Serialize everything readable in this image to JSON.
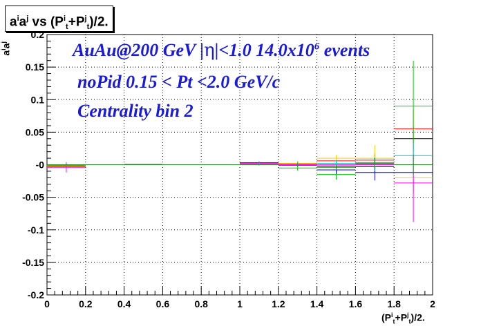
{
  "chart_data": {
    "type": "scatter",
    "title": "aⁱaʲ vs (Pₜⁱ+Pₜʲ)/2.",
    "xlabel": "(Pₜⁱ+Pₜʲ)/2.",
    "ylabel": "aⁱaʲ",
    "xlim": [
      0,
      2
    ],
    "ylim": [
      -0.2,
      0.2
    ],
    "xticks": [
      "0",
      "0.2",
      "0.4",
      "0.6",
      "0.8",
      "1",
      "1.2",
      "1.4",
      "1.6",
      "1.8",
      "2"
    ],
    "yticks": [
      "-0.2",
      "-0.15",
      "-0.1",
      "-0.05",
      "-0",
      "0.05",
      "0.1",
      "0.15",
      "0.2"
    ],
    "grid": true,
    "annotations": [
      "AuAu@200 GeV |η|<1.0 14.0x10⁶ events",
      "noPid 0.15 < Pt <2.0 GeV/c",
      "Centrality bin 2"
    ],
    "series": [
      {
        "color": "#000000",
        "points": [
          {
            "x": 0.1,
            "y": -0.0005,
            "err": 0.001
          },
          {
            "x": 0.3,
            "y": 0.0,
            "err": 0.0005
          },
          {
            "x": 0.5,
            "y": 0.0,
            "err": 0.0005
          },
          {
            "x": 0.7,
            "y": 0.0,
            "err": 0.0005
          },
          {
            "x": 0.9,
            "y": 0.0,
            "err": 0.0005
          },
          {
            "x": 1.1,
            "y": 0.0015,
            "err": 0.002
          },
          {
            "x": 1.3,
            "y": 0.002,
            "err": 0.003
          },
          {
            "x": 1.5,
            "y": -0.002,
            "err": 0.004
          },
          {
            "x": 1.7,
            "y": -0.003,
            "err": 0.008
          },
          {
            "x": 1.9,
            "y": 0.04,
            "err": 0.02
          }
        ]
      },
      {
        "color": "#ff0000",
        "points": [
          {
            "x": 0.1,
            "y": -0.003,
            "err": 0.002
          },
          {
            "x": 0.3,
            "y": 0.0,
            "err": 0.0005
          },
          {
            "x": 0.5,
            "y": 0.0005,
            "err": 0.0005
          },
          {
            "x": 0.7,
            "y": 0.0,
            "err": 0.0005
          },
          {
            "x": 0.9,
            "y": 0.0,
            "err": 0.0005
          },
          {
            "x": 1.1,
            "y": 0.001,
            "err": 0.002
          },
          {
            "x": 1.3,
            "y": 0.001,
            "err": 0.003
          },
          {
            "x": 1.5,
            "y": 0.006,
            "err": 0.006
          },
          {
            "x": 1.7,
            "y": 0.007,
            "err": 0.01
          },
          {
            "x": 1.9,
            "y": 0.055,
            "err": 0.03
          }
        ]
      },
      {
        "color": "#00cc00",
        "points": [
          {
            "x": 0.1,
            "y": -0.001,
            "err": 0.002
          },
          {
            "x": 0.3,
            "y": 0.0,
            "err": 0.0005
          },
          {
            "x": 0.5,
            "y": 0.0,
            "err": 0.0005
          },
          {
            "x": 0.7,
            "y": 0.0,
            "err": 0.0005
          },
          {
            "x": 0.9,
            "y": 0.0,
            "err": 0.0005
          },
          {
            "x": 1.1,
            "y": 0.002,
            "err": 0.002
          },
          {
            "x": 1.3,
            "y": -0.005,
            "err": 0.004
          },
          {
            "x": 1.5,
            "y": -0.015,
            "err": 0.008
          },
          {
            "x": 1.7,
            "y": 0.003,
            "err": 0.012
          },
          {
            "x": 1.9,
            "y": 0.09,
            "err": 0.07
          }
        ]
      },
      {
        "color": "#0000ff",
        "points": [
          {
            "x": 0.1,
            "y": -0.002,
            "err": 0.002
          },
          {
            "x": 0.3,
            "y": 0.0,
            "err": 0.0005
          },
          {
            "x": 0.5,
            "y": 0.0,
            "err": 0.0005
          },
          {
            "x": 0.7,
            "y": 0.0,
            "err": 0.0005
          },
          {
            "x": 0.9,
            "y": 0.0,
            "err": 0.0005
          },
          {
            "x": 1.1,
            "y": 0.003,
            "err": 0.002
          },
          {
            "x": 1.3,
            "y": 0.001,
            "err": 0.003
          },
          {
            "x": 1.5,
            "y": -0.008,
            "err": 0.006
          },
          {
            "x": 1.7,
            "y": -0.012,
            "err": 0.012
          },
          {
            "x": 1.9,
            "y": -0.012,
            "err": 0.03
          }
        ]
      },
      {
        "color": "#ffcc00",
        "points": [
          {
            "x": 0.1,
            "y": -0.002,
            "err": 0.002
          },
          {
            "x": 0.3,
            "y": 0.0,
            "err": 0.0005
          },
          {
            "x": 0.5,
            "y": 0.0,
            "err": 0.0005
          },
          {
            "x": 0.7,
            "y": 0.0,
            "err": 0.0005
          },
          {
            "x": 0.9,
            "y": 0.0,
            "err": 0.0005
          },
          {
            "x": 1.1,
            "y": 0.002,
            "err": 0.002
          },
          {
            "x": 1.3,
            "y": 0.002,
            "err": 0.003
          },
          {
            "x": 1.5,
            "y": 0.01,
            "err": 0.005
          },
          {
            "x": 1.7,
            "y": 0.01,
            "err": 0.02
          },
          {
            "x": 1.9,
            "y": -0.02,
            "err": 0.03
          }
        ]
      },
      {
        "color": "#ff00ff",
        "points": [
          {
            "x": 0.1,
            "y": -0.004,
            "err": 0.008
          },
          {
            "x": 0.3,
            "y": 0.0,
            "err": 0.0005
          },
          {
            "x": 0.5,
            "y": 0.0,
            "err": 0.0005
          },
          {
            "x": 0.7,
            "y": 0.0,
            "err": 0.0005
          },
          {
            "x": 0.9,
            "y": 0.0,
            "err": 0.0005
          },
          {
            "x": 1.1,
            "y": 0.002,
            "err": 0.002
          },
          {
            "x": 1.3,
            "y": 0.0,
            "err": 0.003
          },
          {
            "x": 1.5,
            "y": 0.0,
            "err": 0.005
          },
          {
            "x": 1.7,
            "y": 0.0,
            "err": 0.01
          },
          {
            "x": 1.9,
            "y": -0.028,
            "err": 0.06
          }
        ]
      },
      {
        "color": "#00cccc",
        "points": [
          {
            "x": 0.1,
            "y": 0.0,
            "err": 0.002
          },
          {
            "x": 0.3,
            "y": 0.0,
            "err": 0.0005
          },
          {
            "x": 0.5,
            "y": 0.0,
            "err": 0.0005
          },
          {
            "x": 0.7,
            "y": 0.0,
            "err": 0.0005
          },
          {
            "x": 0.9,
            "y": 0.0,
            "err": 0.0005
          },
          {
            "x": 1.1,
            "y": 0.001,
            "err": 0.002
          },
          {
            "x": 1.3,
            "y": 0.001,
            "err": 0.003
          },
          {
            "x": 1.5,
            "y": 0.002,
            "err": 0.005
          },
          {
            "x": 1.7,
            "y": 0.001,
            "err": 0.01
          },
          {
            "x": 1.9,
            "y": 0.014,
            "err": 0.02
          }
        ]
      },
      {
        "color": "#228822",
        "points": [
          {
            "x": 0.1,
            "y": 0.0,
            "err": 0.001
          },
          {
            "x": 0.3,
            "y": 0.0,
            "err": 0.0005
          },
          {
            "x": 0.5,
            "y": 0.0,
            "err": 0.0005
          },
          {
            "x": 0.7,
            "y": 0.0,
            "err": 0.0005
          },
          {
            "x": 0.9,
            "y": 0.0,
            "err": 0.0005
          },
          {
            "x": 1.1,
            "y": 0.0,
            "err": 0.001
          },
          {
            "x": 1.3,
            "y": -0.001,
            "err": 0.002
          },
          {
            "x": 1.5,
            "y": -0.004,
            "err": 0.004
          },
          {
            "x": 1.7,
            "y": 0.002,
            "err": 0.008
          },
          {
            "x": 1.9,
            "y": 0.0,
            "err": 0.015
          }
        ]
      }
    ]
  }
}
